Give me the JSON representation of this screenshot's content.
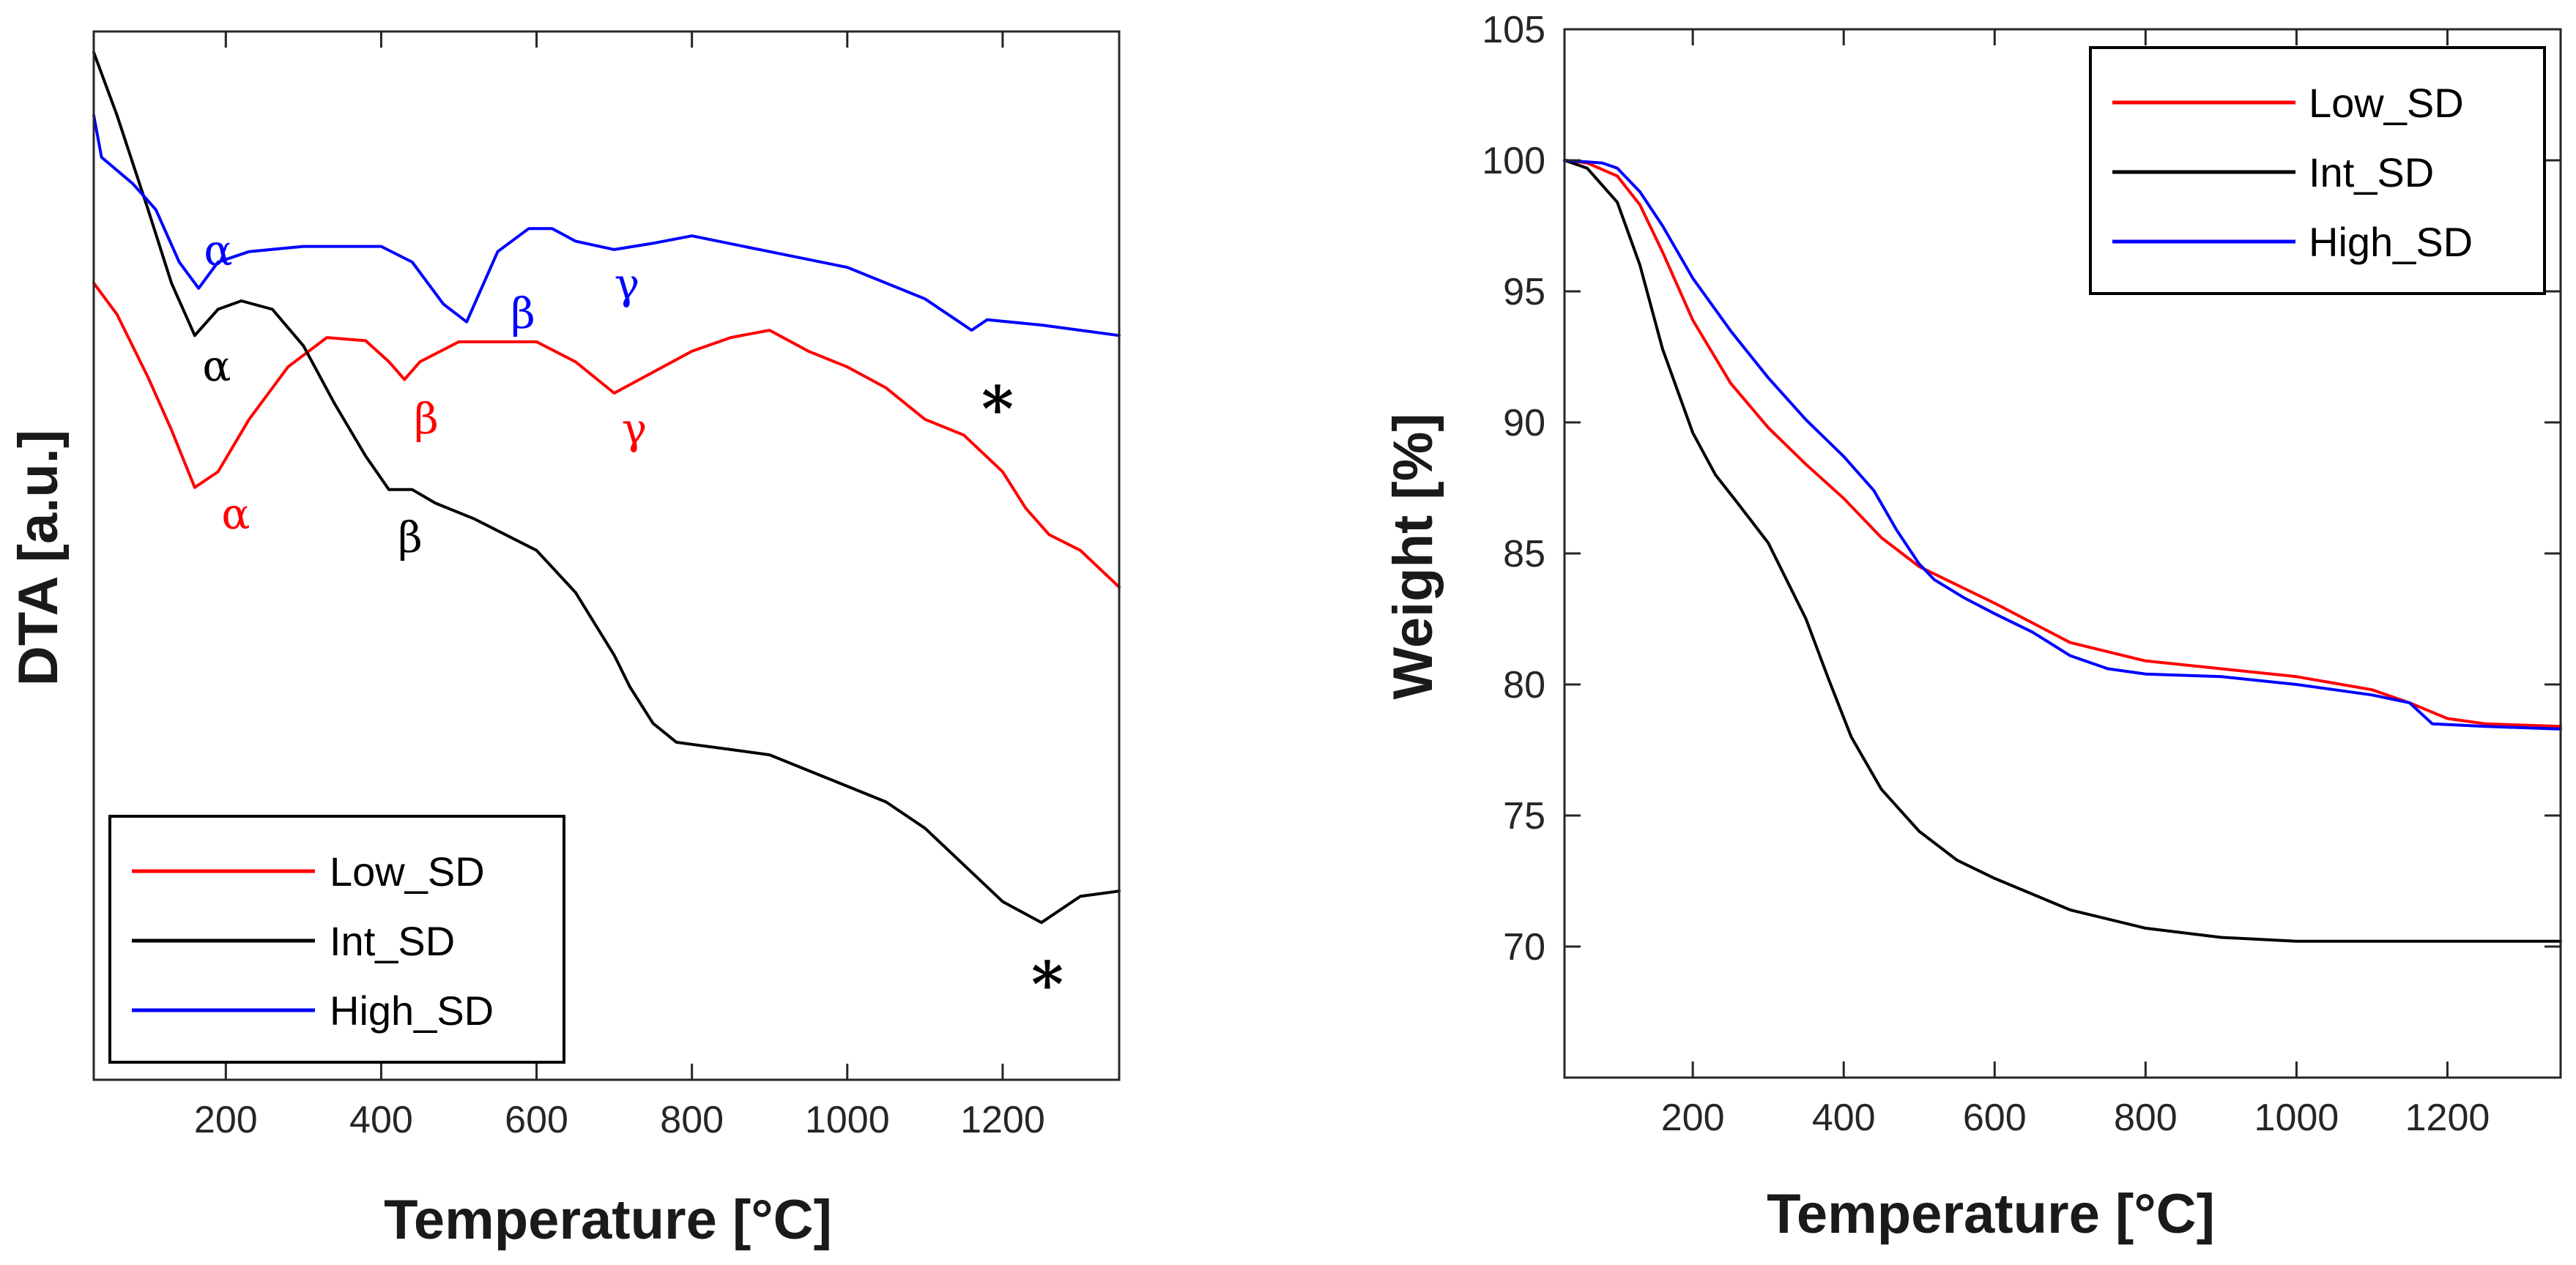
{
  "chart_data": [
    {
      "type": "line",
      "ylabel": "DTA [a.u.]",
      "xlabel": "Temperature [°C]",
      "xlim": [
        30,
        1350
      ],
      "ylim": [
        0,
        100
      ],
      "xticks": [
        200,
        400,
        600,
        800,
        1000,
        1200
      ],
      "yticks_shown": false,
      "legend_position": "bottom-left",
      "colors": {
        "Low_SD": "#ff0000",
        "Int_SD": "#000000",
        "High_SD": "#0000ff"
      },
      "series": [
        {
          "name": "Low_SD",
          "x": [
            30,
            60,
            100,
            130,
            160,
            190,
            230,
            280,
            330,
            380,
            410,
            430,
            450,
            500,
            600,
            650,
            700,
            750,
            800,
            850,
            900,
            950,
            1000,
            1050,
            1100,
            1150,
            1200,
            1230,
            1260,
            1300,
            1350
          ],
          "y": [
            76,
            73,
            67,
            62,
            56.5,
            58,
            63,
            68,
            70.8,
            70.5,
            68.5,
            66.8,
            68.5,
            70.4,
            70.4,
            68.5,
            65.5,
            67.5,
            69.5,
            70.8,
            71.5,
            69.5,
            68,
            66,
            63,
            61.5,
            58,
            54.5,
            52,
            50.5,
            47
          ],
          "annotations": [
            "α",
            "β",
            "γ"
          ]
        },
        {
          "name": "Int_SD",
          "x": [
            30,
            60,
            100,
            130,
            160,
            190,
            220,
            260,
            300,
            340,
            380,
            410,
            440,
            470,
            520,
            600,
            650,
            700,
            720,
            750,
            780,
            800,
            850,
            900,
            950,
            1000,
            1050,
            1100,
            1150,
            1200,
            1250,
            1300,
            1350
          ],
          "y": [
            98,
            92,
            83,
            76,
            71,
            73.5,
            74.3,
            73.5,
            70,
            64.5,
            59.5,
            56.3,
            56.3,
            55,
            53.5,
            50.5,
            46.5,
            40.5,
            37.5,
            34,
            32.2,
            32,
            31.5,
            31,
            29.5,
            28,
            26.5,
            24,
            20.5,
            17,
            15,
            17.5,
            18
          ],
          "annotations": [
            "α",
            "β",
            "*"
          ]
        },
        {
          "name": "High_SD",
          "x": [
            30,
            40,
            80,
            110,
            140,
            165,
            190,
            230,
            300,
            350,
            400,
            440,
            480,
            510,
            550,
            590,
            620,
            650,
            700,
            750,
            800,
            900,
            1000,
            1100,
            1140,
            1160,
            1180,
            1250,
            1350
          ],
          "y": [
            92,
            88,
            85.5,
            83,
            78,
            75.5,
            78,
            79,
            79.5,
            79.5,
            79.5,
            78,
            74,
            72.3,
            79,
            81.2,
            81.2,
            80,
            79.2,
            79.8,
            80.5,
            79,
            77.5,
            74.5,
            72.5,
            71.5,
            72.5,
            72,
            71
          ],
          "annotations": [
            "α",
            "β",
            "γ",
            "*"
          ]
        }
      ],
      "annotations": [
        {
          "text": "α",
          "color": "#0000ff"
        },
        {
          "text": "β",
          "color": "#0000ff"
        },
        {
          "text": "γ",
          "color": "#0000ff"
        },
        {
          "text": "*",
          "color": "#000000"
        },
        {
          "text": "α",
          "color": "#000000"
        },
        {
          "text": "β",
          "color": "#ff0000"
        },
        {
          "text": "γ",
          "color": "#ff0000"
        },
        {
          "text": "α",
          "color": "#ff0000"
        },
        {
          "text": "β",
          "color": "#000000"
        },
        {
          "text": "*",
          "color": "#000000"
        }
      ]
    },
    {
      "type": "line",
      "ylabel": "Weight [%]",
      "xlabel": "Temperature [°C]",
      "xlim": [
        30,
        1350
      ],
      "ylim": [
        65,
        105
      ],
      "xticks": [
        200,
        400,
        600,
        800,
        1000,
        1200
      ],
      "yticks": [
        70,
        75,
        80,
        85,
        90,
        95,
        100,
        105
      ],
      "legend_position": "top-right",
      "colors": {
        "Low_SD": "#ff0000",
        "Int_SD": "#000000",
        "High_SD": "#0000ff"
      },
      "series": [
        {
          "name": "Low_SD",
          "x": [
            30,
            60,
            100,
            130,
            160,
            200,
            250,
            300,
            350,
            400,
            450,
            500,
            550,
            600,
            700,
            800,
            900,
            1000,
            1100,
            1150,
            1200,
            1250,
            1350
          ],
          "y": [
            100,
            99.9,
            99.4,
            98.3,
            96.5,
            93.9,
            91.5,
            89.8,
            88.4,
            87.1,
            85.6,
            84.5,
            83.8,
            83.1,
            81.6,
            80.9,
            80.6,
            80.3,
            79.8,
            79.3,
            78.7,
            78.5,
            78.4
          ]
        },
        {
          "name": "Int_SD",
          "x": [
            30,
            60,
            100,
            130,
            160,
            200,
            230,
            260,
            300,
            350,
            380,
            410,
            450,
            500,
            550,
            600,
            700,
            800,
            900,
            1000,
            1100,
            1200,
            1350
          ],
          "y": [
            100,
            99.7,
            98.4,
            96,
            92.8,
            89.6,
            88,
            86.9,
            85.4,
            82.5,
            80.2,
            78,
            76,
            74.4,
            73.3,
            72.6,
            71.4,
            70.7,
            70.35,
            70.2,
            70.2,
            70.2,
            70.2
          ]
        },
        {
          "name": "High_SD",
          "x": [
            30,
            80,
            100,
            130,
            160,
            200,
            250,
            300,
            350,
            400,
            440,
            470,
            500,
            520,
            560,
            600,
            650,
            700,
            750,
            800,
            900,
            1000,
            1100,
            1150,
            1180,
            1250,
            1350
          ],
          "y": [
            100,
            99.9,
            99.7,
            98.8,
            97.5,
            95.5,
            93.5,
            91.7,
            90.1,
            88.7,
            87.4,
            85.9,
            84.6,
            84,
            83.3,
            82.7,
            82,
            81.1,
            80.6,
            80.4,
            80.3,
            80,
            79.6,
            79.3,
            78.5,
            78.4,
            78.3
          ]
        }
      ]
    }
  ]
}
